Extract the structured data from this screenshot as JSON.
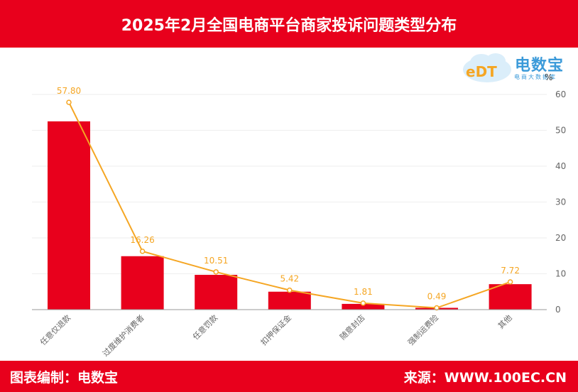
{
  "header": {
    "title": "2025年2月全国电商平台商家投诉问题类型分布"
  },
  "footer": {
    "left": "图表编制：电数宝",
    "right": "来源：WWW.100EC.CN"
  },
  "logo": {
    "text": "电数宝",
    "subtitle": "电商大数据库",
    "cloud_text": "eDT"
  },
  "colors": {
    "bar": "#e8001c",
    "line": "#f5a623",
    "label": "#f5a623",
    "axis_text": "#666666",
    "grid": "#eeeeee"
  },
  "chart_data": {
    "type": "bar",
    "title": "2025年2月全国电商平台商家投诉问题类型分布",
    "categories": [
      "任意仅退款",
      "过度维护消费者",
      "任意罚款",
      "扣押保证金",
      "随意封店",
      "强制运费险",
      "其他"
    ],
    "series": [
      {
        "name": "bar",
        "type": "bar",
        "values": [
          52.5,
          14.9,
          9.7,
          5.0,
          1.6,
          0.5,
          7.1
        ]
      },
      {
        "name": "line",
        "type": "line",
        "values": [
          57.8,
          16.26,
          10.51,
          5.42,
          1.81,
          0.49,
          7.72
        ]
      }
    ],
    "data_labels": [
      "57.80",
      "16.26",
      "10.51",
      "5.42",
      "1.81",
      "0.49",
      "7.72"
    ],
    "ylabel": "%",
    "ylim": [
      0,
      60
    ],
    "yticks": [
      "0",
      "10",
      "20",
      "30",
      "40",
      "50",
      "60"
    ]
  }
}
